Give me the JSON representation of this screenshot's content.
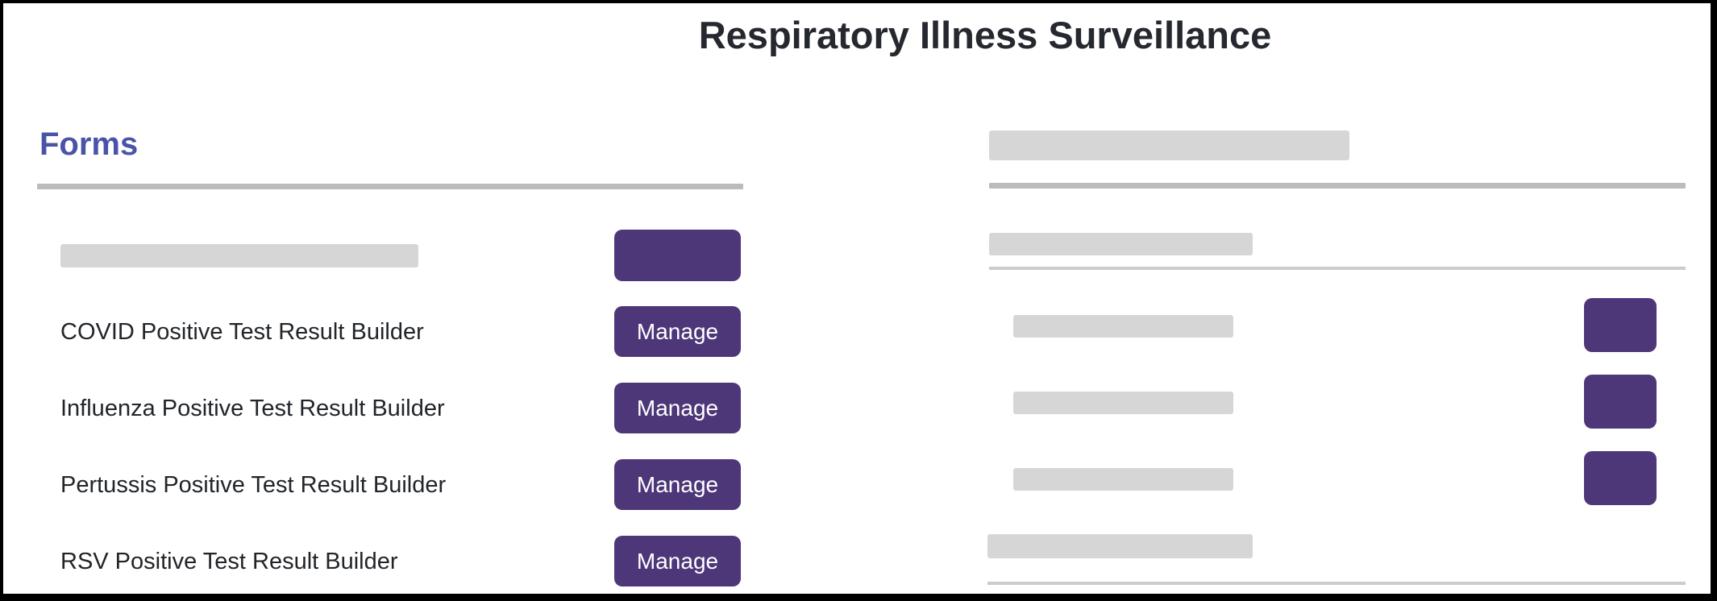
{
  "page": {
    "title": "Respiratory Illness Surveillance"
  },
  "forms": {
    "heading": "Forms",
    "items": [
      {
        "label": "COVID Positive Test Result Builder",
        "button": "Manage"
      },
      {
        "label": "Influenza Positive Test Result Builder",
        "button": "Manage"
      },
      {
        "label": "Pertussis Positive Test Result Builder",
        "button": "Manage"
      },
      {
        "label": "RSV Positive Test Result Builder",
        "button": "Manage"
      }
    ]
  },
  "colors": {
    "accent_purple": "#4d3779",
    "heading_blue": "#4a54a6",
    "title_text": "#25282e",
    "body_text": "#212529",
    "skeleton_gray": "#d6d6d6",
    "divider_gray": "#bbbbbb",
    "thin_line_gray": "#cccccc",
    "frame_border": "#000000"
  }
}
